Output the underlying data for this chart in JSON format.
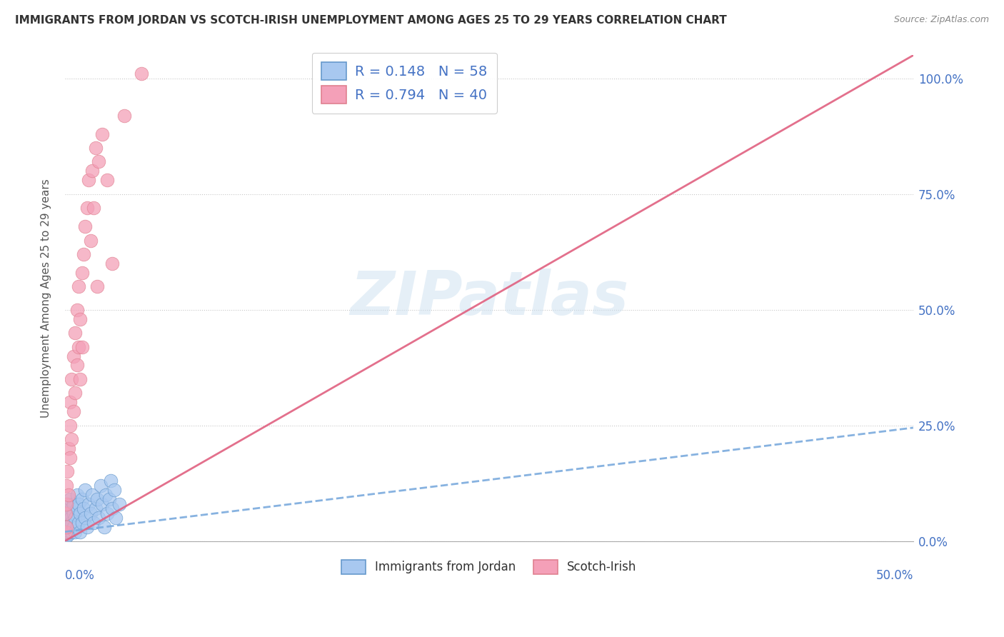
{
  "title": "IMMIGRANTS FROM JORDAN VS SCOTCH-IRISH UNEMPLOYMENT AMONG AGES 25 TO 29 YEARS CORRELATION CHART",
  "source": "Source: ZipAtlas.com",
  "ylabel": "Unemployment Among Ages 25 to 29 years",
  "r_jordan": 0.148,
  "n_jordan": 58,
  "r_scotch": 0.794,
  "n_scotch": 40,
  "jordan_color": "#a8c8f0",
  "scotch_color": "#f4a0b8",
  "jordan_edge_color": "#6699cc",
  "scotch_edge_color": "#e08090",
  "jordan_line_color": "#7aaadd",
  "scotch_line_color": "#e06080",
  "background_color": "#ffffff",
  "grid_color": "#c8c8c8",
  "xmin": 0.0,
  "xmax": 0.5,
  "ymin": 0.0,
  "ymax": 1.05,
  "yticks": [
    0.0,
    0.25,
    0.5,
    0.75,
    1.0
  ],
  "ytick_labels": [
    "0.0%",
    "25.0%",
    "50.0%",
    "75.0%",
    "100.0%"
  ],
  "axis_label_color": "#4472c4",
  "jordan_scatter_x": [
    0.0003,
    0.0005,
    0.0007,
    0.001,
    0.001,
    0.001,
    0.001,
    0.001,
    0.0015,
    0.002,
    0.002,
    0.002,
    0.002,
    0.0025,
    0.003,
    0.003,
    0.003,
    0.003,
    0.0035,
    0.004,
    0.004,
    0.004,
    0.005,
    0.005,
    0.005,
    0.006,
    0.006,
    0.007,
    0.007,
    0.007,
    0.008,
    0.008,
    0.009,
    0.009,
    0.01,
    0.01,
    0.011,
    0.012,
    0.012,
    0.013,
    0.014,
    0.015,
    0.016,
    0.017,
    0.018,
    0.019,
    0.02,
    0.021,
    0.022,
    0.023,
    0.024,
    0.025,
    0.026,
    0.027,
    0.028,
    0.029,
    0.03,
    0.032
  ],
  "jordan_scatter_y": [
    0.02,
    0.05,
    0.015,
    0.04,
    0.07,
    0.03,
    0.01,
    0.06,
    0.02,
    0.05,
    0.03,
    0.08,
    0.015,
    0.04,
    0.06,
    0.02,
    0.09,
    0.03,
    0.05,
    0.07,
    0.02,
    0.04,
    0.06,
    0.03,
    0.08,
    0.05,
    0.02,
    0.07,
    0.03,
    0.1,
    0.04,
    0.08,
    0.06,
    0.02,
    0.09,
    0.04,
    0.07,
    0.05,
    0.11,
    0.03,
    0.08,
    0.06,
    0.1,
    0.04,
    0.07,
    0.09,
    0.05,
    0.12,
    0.08,
    0.03,
    0.1,
    0.06,
    0.09,
    0.13,
    0.07,
    0.11,
    0.05,
    0.08
  ],
  "scotch_scatter_x": [
    0.0003,
    0.0005,
    0.001,
    0.001,
    0.001,
    0.0015,
    0.002,
    0.002,
    0.003,
    0.003,
    0.003,
    0.004,
    0.004,
    0.005,
    0.005,
    0.006,
    0.006,
    0.007,
    0.007,
    0.008,
    0.008,
    0.009,
    0.009,
    0.01,
    0.01,
    0.011,
    0.012,
    0.013,
    0.014,
    0.015,
    0.016,
    0.017,
    0.018,
    0.019,
    0.02,
    0.022,
    0.025,
    0.028,
    0.035,
    0.045
  ],
  "scotch_scatter_y": [
    0.02,
    0.06,
    0.03,
    0.08,
    0.12,
    0.15,
    0.1,
    0.2,
    0.18,
    0.25,
    0.3,
    0.22,
    0.35,
    0.28,
    0.4,
    0.32,
    0.45,
    0.38,
    0.5,
    0.42,
    0.55,
    0.48,
    0.35,
    0.58,
    0.42,
    0.62,
    0.68,
    0.72,
    0.78,
    0.65,
    0.8,
    0.72,
    0.85,
    0.55,
    0.82,
    0.88,
    0.78,
    0.6,
    0.92,
    1.01
  ],
  "jordan_line_x0": 0.0,
  "jordan_line_x1": 0.5,
  "jordan_line_y0": 0.02,
  "jordan_line_y1": 0.245,
  "scotch_line_x0": 0.0,
  "scotch_line_x1": 0.5,
  "scotch_line_y0": 0.0,
  "scotch_line_y1": 1.05
}
